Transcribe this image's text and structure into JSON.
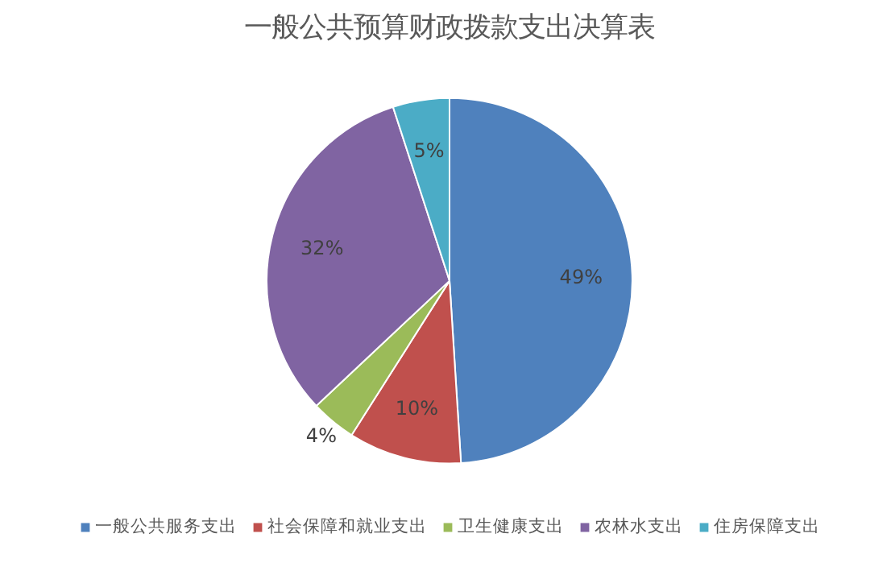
{
  "chart_data": {
    "type": "pie",
    "title": "一般公共预算财政拨款支出决算表",
    "categories": [
      "一般公共服务支出",
      "社会保障和就业支出",
      "卫生健康支出",
      "农林水支出",
      "住房保障支出"
    ],
    "values": [
      49,
      10,
      4,
      32,
      5
    ],
    "colors": [
      "#4f81bd",
      "#c0504d",
      "#9bbb59",
      "#8064a2",
      "#4bacc6"
    ],
    "value_labels": [
      "49%",
      "10%",
      "4%",
      "32%",
      "5%"
    ],
    "legend": "bottom"
  }
}
